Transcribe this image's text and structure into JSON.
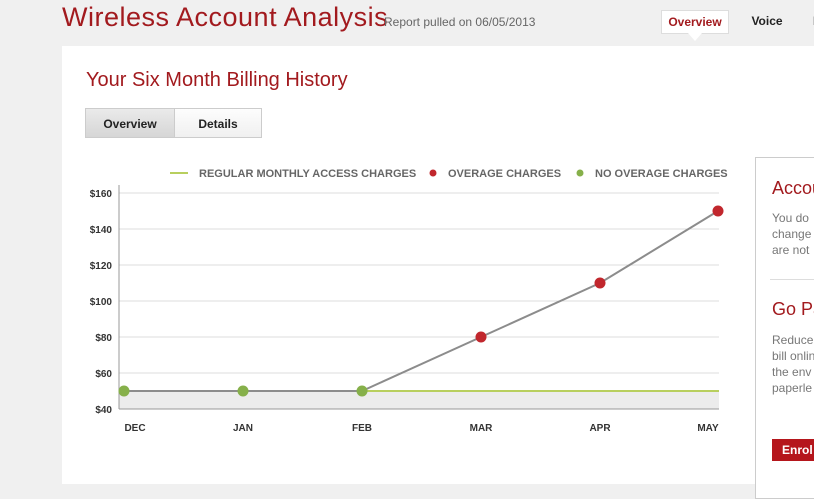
{
  "header": {
    "title": "Wireless Account Analysis",
    "report_date": "Report pulled on 06/05/2013",
    "tabs": [
      "Overview",
      "Voice",
      "M"
    ]
  },
  "main": {
    "section_title": "Your Six Month Billing History",
    "view_tabs": [
      "Overview",
      "Details"
    ]
  },
  "sidebar": {
    "account_heading": "Accou",
    "account_lines": [
      "You do",
      "change",
      "are not"
    ],
    "paper_heading": "Go Pa",
    "paper_lines": [
      "Reduce",
      "bill onlin",
      "the env",
      "paperle"
    ],
    "enroll_label": "Enrol"
  },
  "colors": {
    "accent": "#a21a1e",
    "overage": "#c1272d",
    "no_overage": "#86b04a",
    "regular_line": "#b8cf5e"
  },
  "chart_data": {
    "type": "line",
    "categories": [
      "DEC",
      "JAN",
      "FEB",
      "MAR",
      "APR",
      "MAY"
    ],
    "ylim": [
      40,
      160
    ],
    "yticks": [
      "$40",
      "$60",
      "$80",
      "$100",
      "$120",
      "$140",
      "$160"
    ],
    "legend": [
      "REGULAR MONTHLY ACCESS CHARGES",
      "OVERAGE CHARGES",
      "NO OVERAGE CHARGES"
    ],
    "legend_position": "top",
    "grid": true,
    "series": [
      {
        "name": "REGULAR MONTHLY ACCESS CHARGES",
        "values": [
          50,
          50,
          50,
          50,
          50,
          50
        ]
      },
      {
        "values": [
          50,
          50,
          50,
          80,
          110,
          150
        ]
      }
    ],
    "point_status": [
      "NO OVERAGE CHARGES",
      "NO OVERAGE CHARGES",
      "NO OVERAGE CHARGES",
      "OVERAGE CHARGES",
      "OVERAGE CHARGES",
      "OVERAGE CHARGES"
    ]
  }
}
